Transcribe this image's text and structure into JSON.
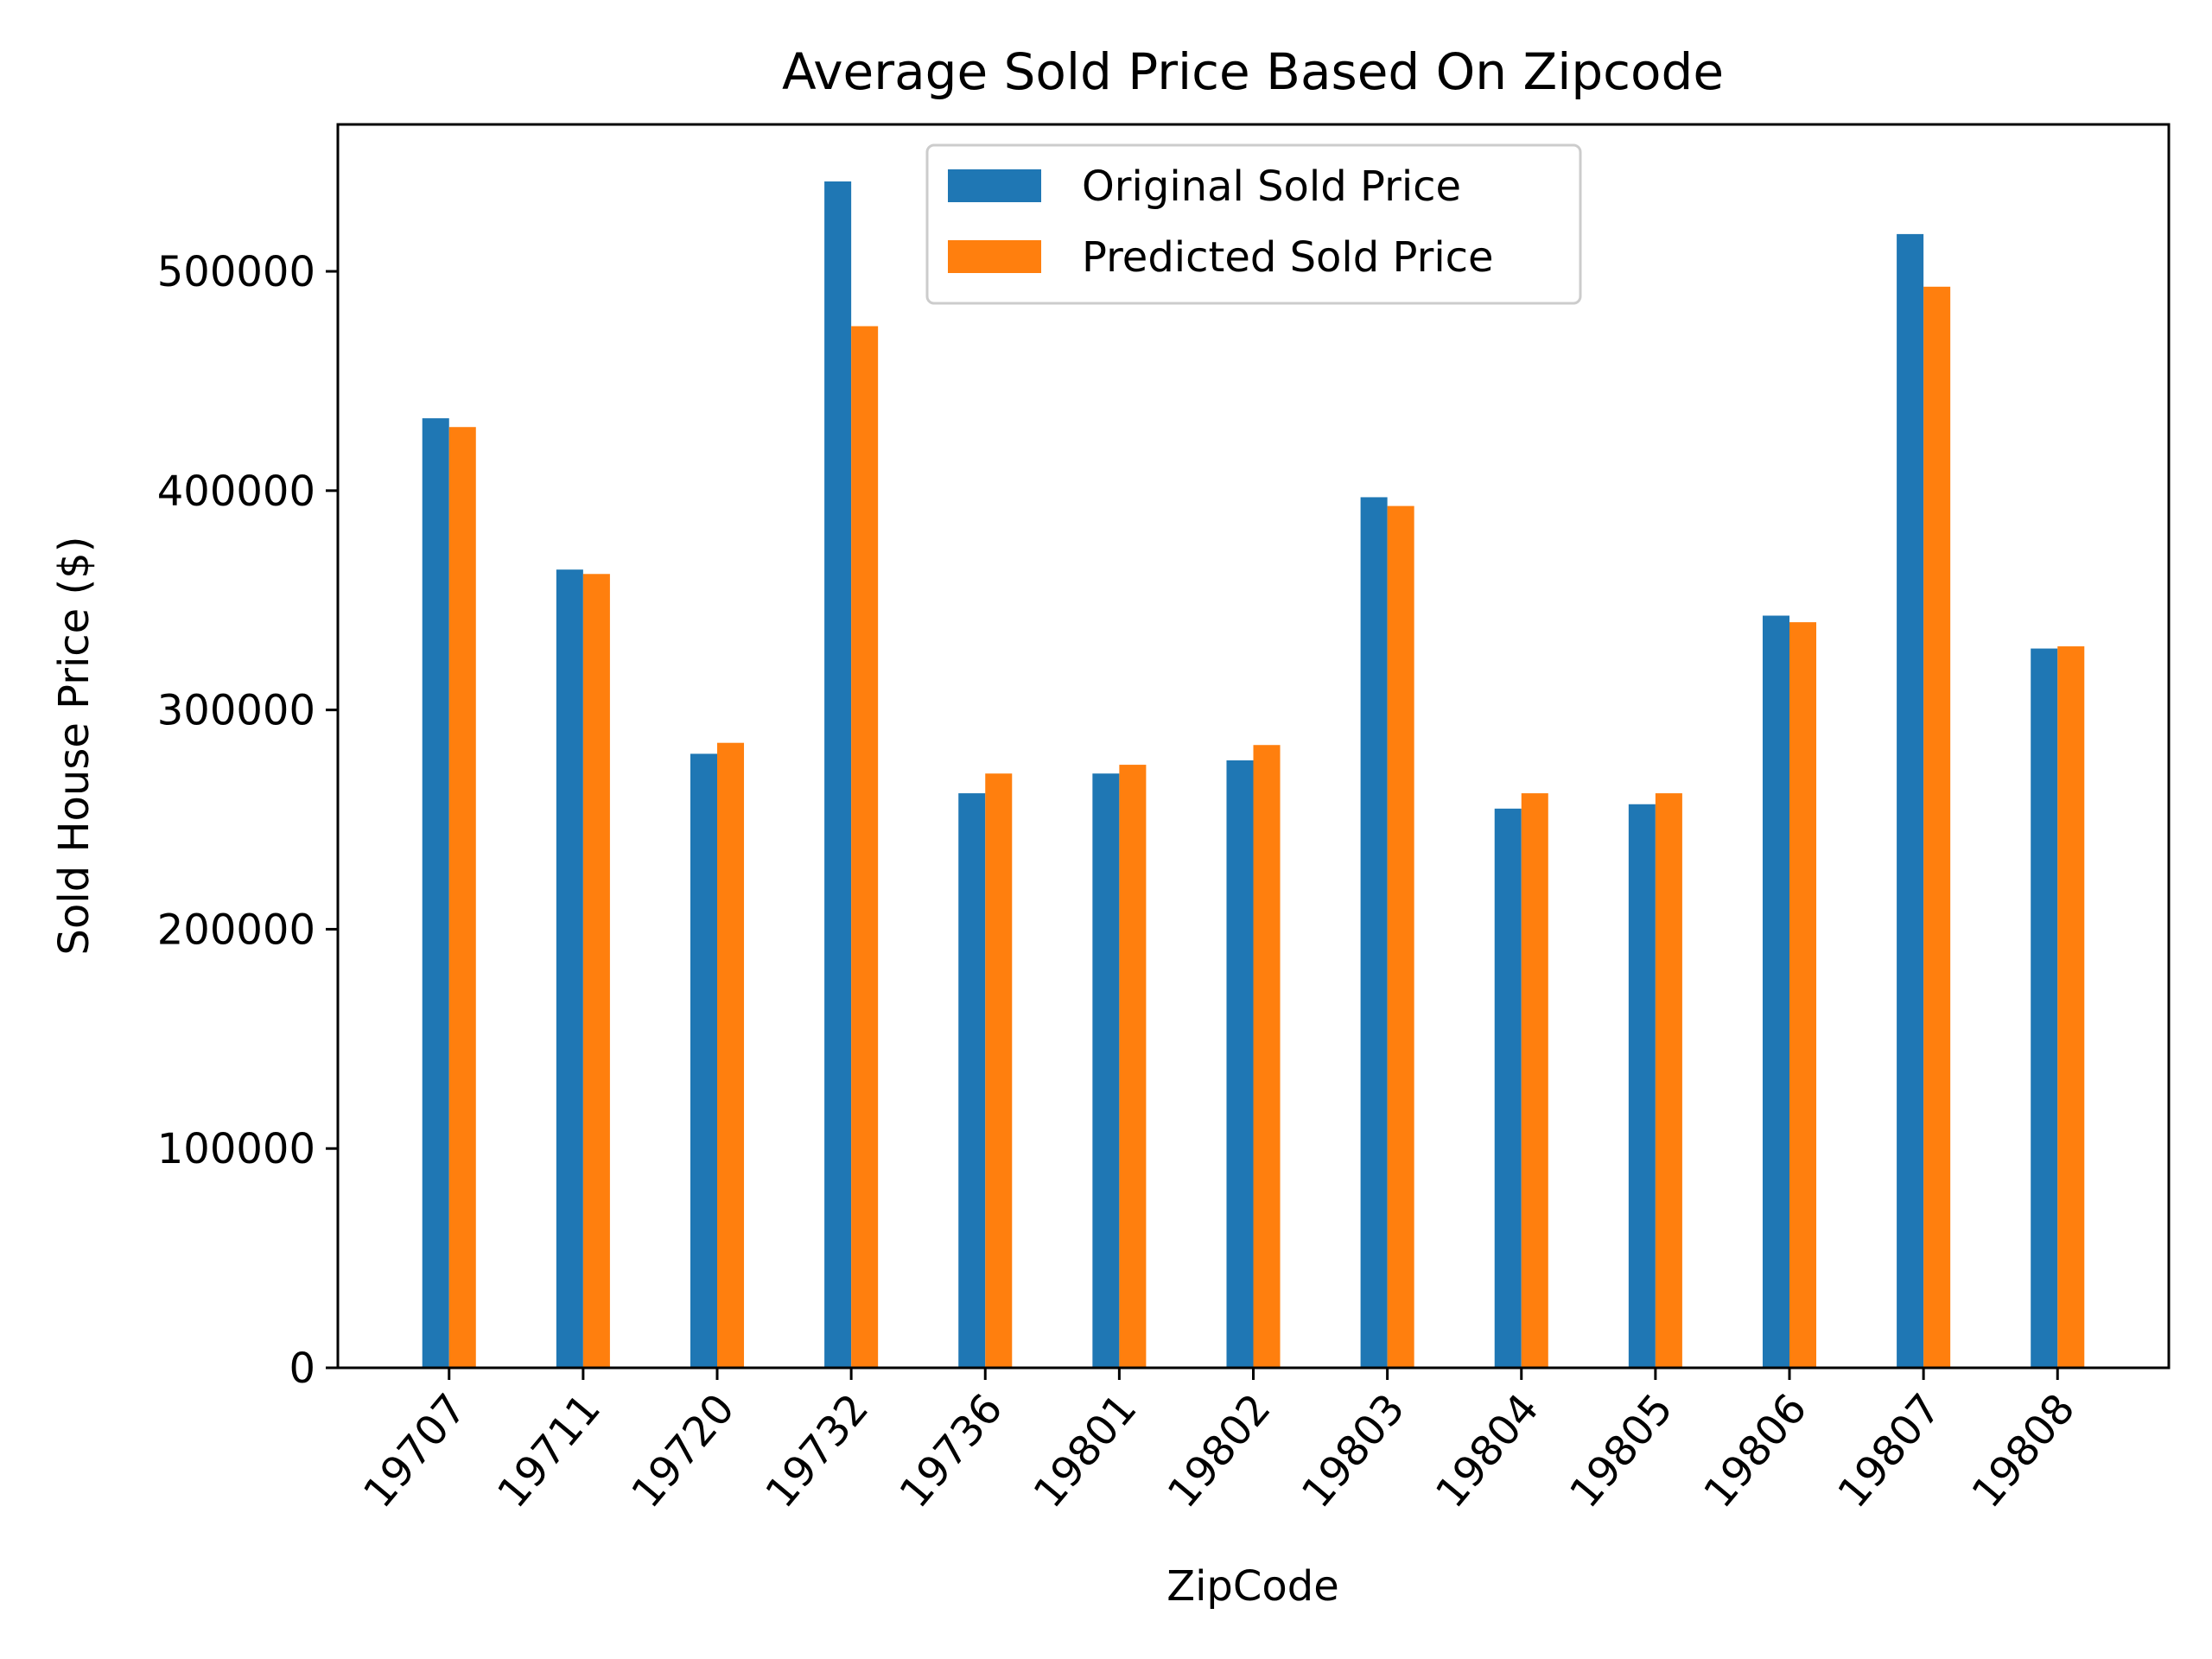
{
  "chart_data": {
    "type": "bar",
    "title": "Average Sold Price Based On Zipcode",
    "xlabel": "ZipCode",
    "ylabel": "Sold House Price ($)",
    "categories": [
      "19707",
      "19711",
      "19720",
      "19732",
      "19736",
      "19801",
      "19802",
      "19803",
      "19804",
      "19805",
      "19806",
      "19807",
      "19808"
    ],
    "series": [
      {
        "name": "Original Sold Price",
        "color": "#1f77b4",
        "values": [
          433000,
          364000,
          280000,
          541000,
          262000,
          271000,
          277000,
          397000,
          255000,
          257000,
          343000,
          517000,
          328000
        ]
      },
      {
        "name": "Predicted Sold Price",
        "color": "#ff7f0e",
        "values": [
          429000,
          362000,
          285000,
          475000,
          271000,
          275000,
          284000,
          393000,
          262000,
          262000,
          340000,
          493000,
          329000
        ]
      }
    ],
    "ylim": [
      0,
      567000
    ],
    "yticks": [
      0,
      100000,
      200000,
      300000,
      400000,
      500000
    ],
    "ytick_labels": [
      "0",
      "100000",
      "200000",
      "300000",
      "400000",
      "500000"
    ],
    "grid": false,
    "legend_position": "top-center"
  }
}
